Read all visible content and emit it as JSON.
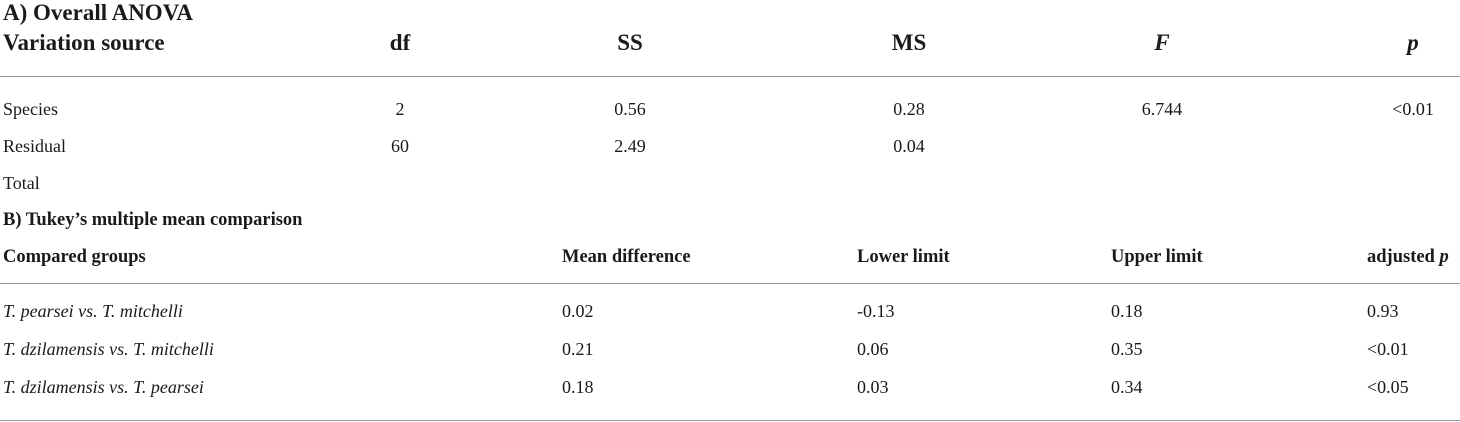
{
  "section_a": {
    "title": "A) Overall ANOVA",
    "headers": {
      "source": "Variation source",
      "df": "df",
      "ss": "SS",
      "ms": "MS",
      "f": "F",
      "p": "p"
    },
    "rows": [
      {
        "source": "Species",
        "df": "2",
        "ss": "0.56",
        "ms": "0.28",
        "f": "6.744",
        "p": "<0.01"
      },
      {
        "source": "Residual",
        "df": "60",
        "ss": "2.49",
        "ms": "0.04",
        "f": "",
        "p": ""
      },
      {
        "source": "Total",
        "df": "",
        "ss": "",
        "ms": "",
        "f": "",
        "p": ""
      }
    ]
  },
  "section_b": {
    "title": "B) Tukey’s multiple mean comparison",
    "headers": {
      "groups": "Compared groups",
      "mean_diff": "Mean difference",
      "lower": "Lower limit",
      "upper": "Upper limit",
      "adj_p_prefix": "adjusted",
      "adj_p_symbol": "p"
    },
    "rows": [
      {
        "groups": "T. pearsei vs. T. mitchelli",
        "mean_diff": "0.02",
        "lower": "-0.13",
        "upper": "0.18",
        "adj_p": "0.93"
      },
      {
        "groups": "T. dzilamensis vs. T. mitchelli",
        "mean_diff": "0.21",
        "lower": "0.06",
        "upper": "0.35",
        "adj_p": "<0.01"
      },
      {
        "groups": "T. dzilamensis vs. T. pearsei",
        "mean_diff": "0.18",
        "lower": "0.03",
        "upper": "0.34",
        "adj_p": "<0.05"
      }
    ]
  }
}
